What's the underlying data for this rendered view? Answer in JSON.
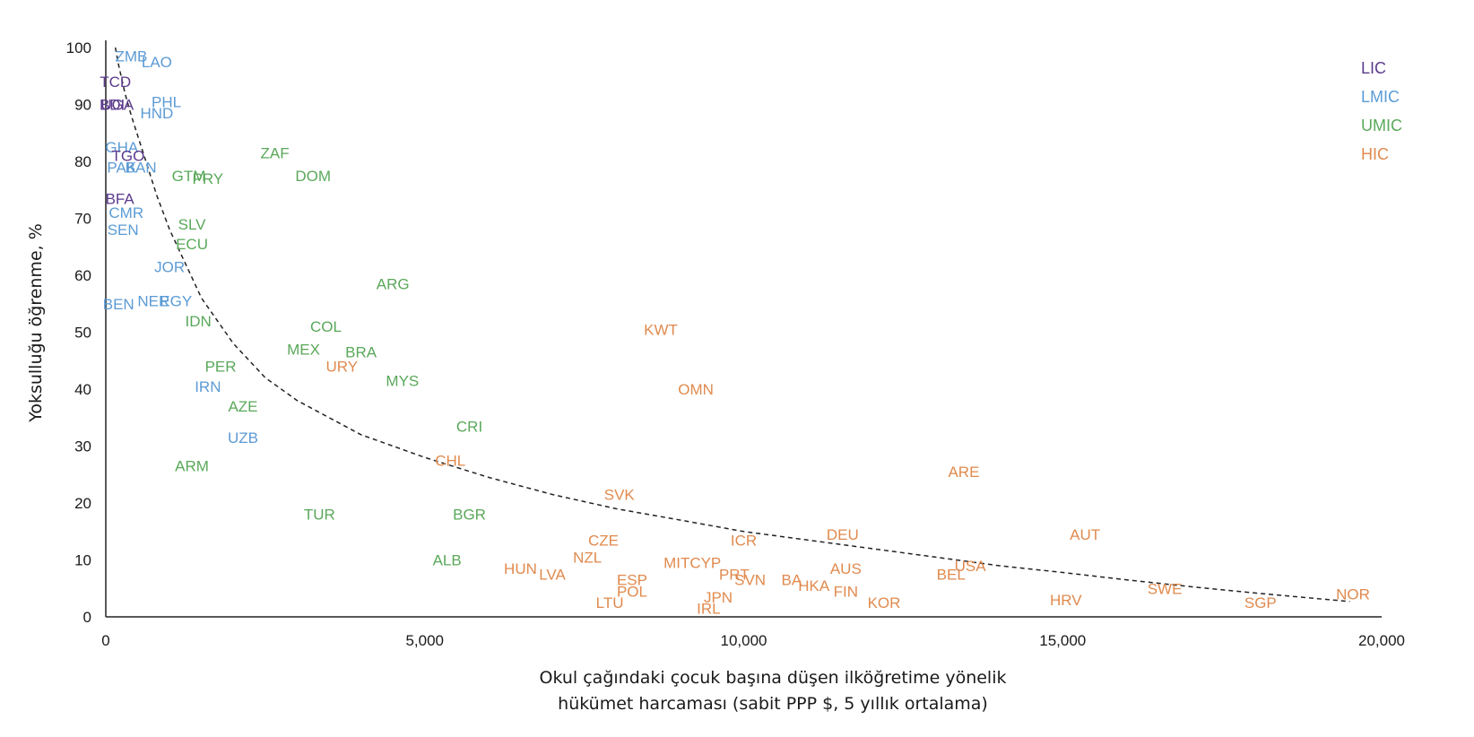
{
  "chart_data": {
    "type": "scatter",
    "title": "",
    "xlabel_lines": [
      "Okul çağındaki çocuk başına düşen ilköğretime yönelik",
      "hükümet harcaması (sabit PPP $, 5 yıllık ortalama)"
    ],
    "ylabel": "Yoksulluğu öğrenme, %",
    "xlim": [
      0,
      20000
    ],
    "ylim": [
      0,
      100
    ],
    "x_ticks": [
      0,
      5000,
      10000,
      15000,
      20000
    ],
    "x_tick_labels": [
      "0",
      "5,000",
      "10,000",
      "15,000",
      "20,000"
    ],
    "y_ticks": [
      0,
      10,
      20,
      30,
      40,
      50,
      60,
      70,
      80,
      90,
      100
    ],
    "y_tick_labels": [
      "0",
      "10",
      "20",
      "30",
      "40",
      "50",
      "60",
      "70",
      "80",
      "90",
      "100"
    ],
    "grid": false,
    "legend_position": "top-right",
    "groups": [
      {
        "name": "LIC",
        "color": "#5b3a8c"
      },
      {
        "name": "LMIC",
        "color": "#5b9bd5"
      },
      {
        "name": "UMIC",
        "color": "#5aa85a"
      },
      {
        "name": "HIC",
        "color": "#e08a4e"
      }
    ],
    "trendline": {
      "style": "dashed",
      "points": [
        [
          150,
          100
        ],
        [
          200,
          97
        ],
        [
          300,
          92
        ],
        [
          400,
          88
        ],
        [
          600,
          81
        ],
        [
          800,
          74
        ],
        [
          1000,
          68
        ],
        [
          1500,
          56
        ],
        [
          2000,
          48
        ],
        [
          2500,
          42
        ],
        [
          3000,
          38
        ],
        [
          3500,
          35
        ],
        [
          4000,
          32
        ],
        [
          5000,
          28
        ],
        [
          6000,
          24.5
        ],
        [
          7000,
          21.5
        ],
        [
          8000,
          19
        ],
        [
          9000,
          17
        ],
        [
          10000,
          15
        ],
        [
          11000,
          13.5
        ],
        [
          12000,
          12
        ],
        [
          13000,
          10.5
        ],
        [
          14000,
          9
        ],
        [
          15000,
          7.8
        ],
        [
          16000,
          6.5
        ],
        [
          17000,
          5.3
        ],
        [
          18000,
          4.2
        ],
        [
          19000,
          3.2
        ],
        [
          19500,
          2.7
        ]
      ]
    },
    "points": [
      {
        "label": "ZMB",
        "group": "LMIC",
        "x": 400,
        "y": 98.5
      },
      {
        "label": "LAO",
        "group": "LMIC",
        "x": 800,
        "y": 97.5
      },
      {
        "label": "TCD",
        "group": "LIC",
        "x": 150,
        "y": 94
      },
      {
        "label": "BDI",
        "group": "LIC",
        "x": 100,
        "y": 90
      },
      {
        "label": "UGA",
        "group": "LIC",
        "x": 180,
        "y": 90
      },
      {
        "label": "PHL",
        "group": "LMIC",
        "x": 950,
        "y": 90.5
      },
      {
        "label": "HND",
        "group": "LMIC",
        "x": 800,
        "y": 88.5
      },
      {
        "label": "GHA",
        "group": "LMIC",
        "x": 250,
        "y": 82.5
      },
      {
        "label": "TGO",
        "group": "LIC",
        "x": 350,
        "y": 81
      },
      {
        "label": "PAK",
        "group": "LMIC",
        "x": 250,
        "y": 79
      },
      {
        "label": "BAN",
        "group": "LMIC",
        "x": 550,
        "y": 79
      },
      {
        "label": "GTM",
        "group": "UMIC",
        "x": 1300,
        "y": 77.5
      },
      {
        "label": "PRY",
        "group": "UMIC",
        "x": 1600,
        "y": 77
      },
      {
        "label": "ZAF",
        "group": "UMIC",
        "x": 2650,
        "y": 81.5
      },
      {
        "label": "DOM",
        "group": "UMIC",
        "x": 3250,
        "y": 77.5
      },
      {
        "label": "BFA",
        "group": "LIC",
        "x": 220,
        "y": 73.5
      },
      {
        "label": "CMR",
        "group": "LMIC",
        "x": 320,
        "y": 71
      },
      {
        "label": "SEN",
        "group": "LMIC",
        "x": 270,
        "y": 68
      },
      {
        "label": "SLV",
        "group": "UMIC",
        "x": 1350,
        "y": 69
      },
      {
        "label": "ECU",
        "group": "UMIC",
        "x": 1350,
        "y": 65.5
      },
      {
        "label": "JOR",
        "group": "LMIC",
        "x": 1000,
        "y": 61.5
      },
      {
        "label": "ARG",
        "group": "UMIC",
        "x": 4500,
        "y": 58.5
      },
      {
        "label": "BEN",
        "group": "LMIC",
        "x": 200,
        "y": 55
      },
      {
        "label": "NER",
        "group": "LMIC",
        "x": 750,
        "y": 55.5
      },
      {
        "label": "EGY",
        "group": "LMIC",
        "x": 1100,
        "y": 55.5
      },
      {
        "label": "IDN",
        "group": "UMIC",
        "x": 1450,
        "y": 52
      },
      {
        "label": "COL",
        "group": "UMIC",
        "x": 3450,
        "y": 51
      },
      {
        "label": "KWT",
        "group": "HIC",
        "x": 8700,
        "y": 50.5
      },
      {
        "label": "MEX",
        "group": "UMIC",
        "x": 3100,
        "y": 47
      },
      {
        "label": "BRA",
        "group": "UMIC",
        "x": 4000,
        "y": 46.5
      },
      {
        "label": "URY",
        "group": "HIC",
        "x": 3700,
        "y": 44
      },
      {
        "label": "PER",
        "group": "UMIC",
        "x": 1800,
        "y": 44
      },
      {
        "label": "MYS",
        "group": "UMIC",
        "x": 4650,
        "y": 41.5
      },
      {
        "label": "IRN",
        "group": "LMIC",
        "x": 1600,
        "y": 40.5
      },
      {
        "label": "OMN",
        "group": "HIC",
        "x": 9250,
        "y": 40
      },
      {
        "label": "AZE",
        "group": "UMIC",
        "x": 2150,
        "y": 37
      },
      {
        "label": "CRI",
        "group": "UMIC",
        "x": 5700,
        "y": 33.5
      },
      {
        "label": "UZB",
        "group": "LMIC",
        "x": 2150,
        "y": 31.5
      },
      {
        "label": "ARM",
        "group": "UMIC",
        "x": 1350,
        "y": 26.5
      },
      {
        "label": "CHL",
        "group": "HIC",
        "x": 5400,
        "y": 27.5
      },
      {
        "label": "ARE",
        "group": "HIC",
        "x": 13450,
        "y": 25.5
      },
      {
        "label": "SVK",
        "group": "HIC",
        "x": 8050,
        "y": 21.5
      },
      {
        "label": "TUR",
        "group": "UMIC",
        "x": 3350,
        "y": 18
      },
      {
        "label": "BGR",
        "group": "UMIC",
        "x": 5700,
        "y": 18
      },
      {
        "label": "DEU",
        "group": "HIC",
        "x": 11550,
        "y": 14.5
      },
      {
        "label": "AUT",
        "group": "HIC",
        "x": 15350,
        "y": 14.5
      },
      {
        "label": "CZE",
        "group": "HIC",
        "x": 7800,
        "y": 13.5
      },
      {
        "label": "ICR",
        "group": "HIC",
        "x": 10000,
        "y": 13.5
      },
      {
        "label": "NZL",
        "group": "HIC",
        "x": 7550,
        "y": 10.5
      },
      {
        "label": "MIT",
        "group": "HIC",
        "x": 8950,
        "y": 9.5
      },
      {
        "label": "CYP",
        "group": "HIC",
        "x": 9400,
        "y": 9.5
      },
      {
        "label": "ALB",
        "group": "UMIC",
        "x": 5350,
        "y": 10
      },
      {
        "label": "USA",
        "group": "HIC",
        "x": 13550,
        "y": 9
      },
      {
        "label": "HUN",
        "group": "HIC",
        "x": 6500,
        "y": 8.5
      },
      {
        "label": "AUS",
        "group": "HIC",
        "x": 11600,
        "y": 8.5
      },
      {
        "label": "LVA",
        "group": "HIC",
        "x": 7000,
        "y": 7.5
      },
      {
        "label": "PRT",
        "group": "HIC",
        "x": 9850,
        "y": 7.5
      },
      {
        "label": "BEL",
        "group": "HIC",
        "x": 13250,
        "y": 7.5
      },
      {
        "label": "ESP",
        "group": "HIC",
        "x": 8250,
        "y": 6.5
      },
      {
        "label": "SVN",
        "group": "HIC",
        "x": 10100,
        "y": 6.5
      },
      {
        "label": "BA",
        "group": "HIC",
        "x": 10750,
        "y": 6.5
      },
      {
        "label": "HKA",
        "group": "HIC",
        "x": 11100,
        "y": 5.5
      },
      {
        "label": "FIN",
        "group": "HIC",
        "x": 11600,
        "y": 4.5
      },
      {
        "label": "SWE",
        "group": "HIC",
        "x": 16600,
        "y": 5
      },
      {
        "label": "POL",
        "group": "HIC",
        "x": 8250,
        "y": 4.5
      },
      {
        "label": "NOR",
        "group": "HIC",
        "x": 19550,
        "y": 4
      },
      {
        "label": "JPN",
        "group": "HIC",
        "x": 9600,
        "y": 3.5
      },
      {
        "label": "HRV",
        "group": "HIC",
        "x": 15050,
        "y": 3
      },
      {
        "label": "KOR",
        "group": "HIC",
        "x": 12200,
        "y": 2.5
      },
      {
        "label": "SGP",
        "group": "HIC",
        "x": 18100,
        "y": 2.5
      },
      {
        "label": "LTU",
        "group": "HIC",
        "x": 7900,
        "y": 2.5
      },
      {
        "label": "IRL",
        "group": "HIC",
        "x": 9450,
        "y": 1.5
      }
    ]
  }
}
